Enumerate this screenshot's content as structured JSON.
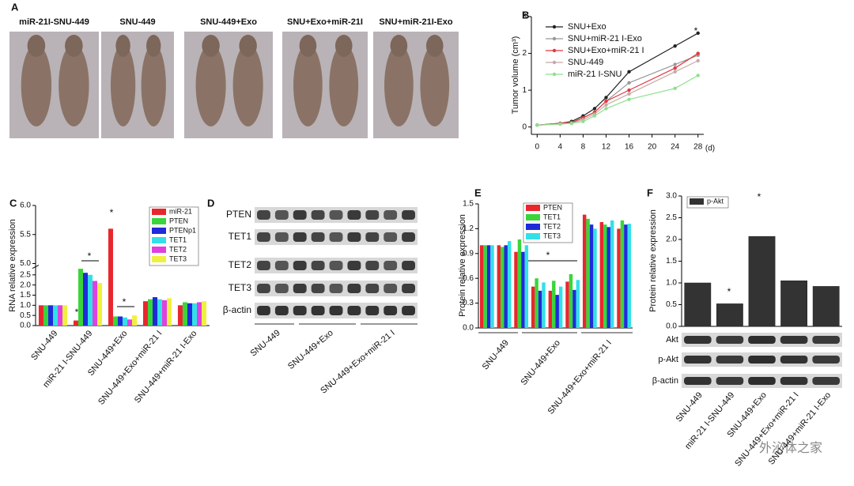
{
  "panel_a": {
    "letter": "A",
    "labels": [
      "miR-21I-SNU-449",
      "SNU-449",
      "SNU-449+Exo",
      "SNU+Exo+miR-21I",
      "SNU+miR-21I-Exo"
    ]
  },
  "panel_d": {
    "letter": "D",
    "rows": [
      "PTEN",
      "TET1",
      "TET2",
      "TET3",
      "β-actin"
    ],
    "groups": [
      "SNU-449",
      "SNU-449+Exo",
      "SNU-449+Exo+miR-21 I"
    ]
  },
  "panel_f_blot": {
    "rows": [
      "Akt",
      "p-Akt",
      "β-actin"
    ]
  },
  "watermark": "外泌体之家",
  "chart_data": [
    {
      "type": "line",
      "panel_label": "B",
      "ylabel": "Tumor volume (cm³)",
      "xlabel": "(d)",
      "annotations": [
        "*"
      ],
      "x": [
        0,
        4,
        6,
        8,
        10,
        12,
        16,
        24,
        28
      ],
      "xlim": [
        -1,
        29
      ],
      "xticks": [
        0,
        4,
        8,
        12,
        16,
        20,
        24,
        28
      ],
      "ylim": [
        -0.2,
        3
      ],
      "yticks": [
        0,
        1,
        2,
        3
      ],
      "legend": "upper left",
      "series": [
        {
          "name": "SNU+Exo",
          "color": "#222222",
          "values": [
            0.05,
            0.1,
            0.15,
            0.3,
            0.5,
            0.8,
            1.5,
            2.2,
            2.55
          ]
        },
        {
          "name": "SNU+miR-21 I-Exo",
          "color": "#999999",
          "values": [
            0.05,
            0.1,
            0.12,
            0.25,
            0.4,
            0.7,
            1.2,
            1.7,
            1.95
          ]
        },
        {
          "name": "SNU+Exo+miR-21 I",
          "color": "#e0393e",
          "values": [
            0.05,
            0.1,
            0.12,
            0.25,
            0.4,
            0.7,
            1.0,
            1.6,
            2.0
          ]
        },
        {
          "name": "SNU-449",
          "color": "#c8a8a8",
          "values": [
            0.05,
            0.08,
            0.1,
            0.2,
            0.35,
            0.6,
            0.9,
            1.5,
            1.8
          ]
        },
        {
          "name": "miR-21 I-SNU",
          "color": "#8ee08e",
          "values": [
            0.05,
            0.08,
            0.1,
            0.15,
            0.3,
            0.5,
            0.75,
            1.05,
            1.4
          ]
        }
      ]
    },
    {
      "type": "bar",
      "panel_label": "C",
      "ylabel": "RNA relative expression",
      "annotations": [
        "*",
        "*",
        "*",
        "*"
      ],
      "categories": [
        "SNU-449",
        "miR-21 I-SNU-449",
        "SNU-449+Exo",
        "SNU-449+Exo+miR-21 I",
        "SNU-449+miR-21 I-Exo"
      ],
      "ylim": [
        0,
        6.0
      ],
      "ybreak": [
        2.9,
        5.0
      ],
      "yticks": [
        {
          "value": 0,
          "label": "0.0"
        },
        {
          "value": 0.5,
          "label": "0.5"
        },
        {
          "value": 1,
          "label": "1.0"
        },
        {
          "value": 1.5,
          "label": "1.5"
        },
        {
          "value": 2,
          "label": "2.0"
        },
        {
          "value": 2.5,
          "label": "2.5"
        },
        {
          "value": 5,
          "label": "5.0"
        },
        {
          "value": 5.5,
          "label": "5.5"
        },
        {
          "value": 6,
          "label": "6.0"
        }
      ],
      "legend": "upper right",
      "series": [
        {
          "name": "miR-21",
          "color": "#e8272d",
          "values": [
            1.0,
            0.25,
            5.6,
            1.2,
            1.0
          ]
        },
        {
          "name": "PTEN",
          "color": "#3ad53a",
          "values": [
            1.0,
            2.8,
            0.45,
            1.3,
            1.15
          ]
        },
        {
          "name": "PTENp1",
          "color": "#1f2bd9",
          "values": [
            1.0,
            2.6,
            0.45,
            1.4,
            1.1
          ]
        },
        {
          "name": "TET1",
          "color": "#33e0e8",
          "values": [
            1.0,
            2.5,
            0.4,
            1.3,
            1.1
          ]
        },
        {
          "name": "TET2",
          "color": "#e040e0",
          "values": [
            1.0,
            2.2,
            0.3,
            1.25,
            1.15
          ]
        },
        {
          "name": "TET3",
          "color": "#f0f040",
          "values": [
            1.0,
            2.1,
            0.5,
            1.35,
            1.2
          ]
        }
      ]
    },
    {
      "type": "bar",
      "panel_label": "E",
      "ylabel": "Protein relative expression",
      "annotations": [
        "*"
      ],
      "categories": [
        null,
        "SNU-449",
        null,
        null,
        "SNU-449+Exo",
        null,
        null,
        "SNU-449+Exo+miR-21 I",
        null
      ],
      "ylim": [
        0,
        1.5
      ],
      "yticks": [
        {
          "value": 0,
          "label": "0.0"
        },
        {
          "value": 0.3,
          "label": "0.3"
        },
        {
          "value": 0.6,
          "label": "0.6"
        },
        {
          "value": 0.9,
          "label": "0.9"
        },
        {
          "value": 1.2,
          "label": "1.2"
        },
        {
          "value": 1.5,
          "label": "1.5"
        }
      ],
      "legend": "upper center",
      "series": [
        {
          "name": "PTEN",
          "color": "#e8272d",
          "values": [
            1.0,
            1.0,
            0.92,
            0.5,
            0.45,
            0.56,
            1.37,
            1.28,
            1.2
          ]
        },
        {
          "name": "TET1",
          "color": "#3ad53a",
          "values": [
            1.0,
            0.98,
            1.07,
            0.6,
            0.57,
            0.65,
            1.32,
            1.25,
            1.3
          ]
        },
        {
          "name": "TET2",
          "color": "#1f2bd9",
          "values": [
            1.0,
            1.0,
            0.92,
            0.45,
            0.4,
            0.46,
            1.25,
            1.22,
            1.25
          ]
        },
        {
          "name": "TET3",
          "color": "#33e0e8",
          "values": [
            1.0,
            1.05,
            1.0,
            0.55,
            0.5,
            0.58,
            1.2,
            1.3,
            1.26
          ]
        }
      ]
    },
    {
      "type": "bar",
      "panel_label": "F",
      "ylabel": "Protein relative expression",
      "annotations": [
        "*",
        "*"
      ],
      "categories": [
        "SNU-449",
        "miR-21 I-SNU-449",
        "SNU-449+Exo",
        "SNU-449+Exo+miR-21 I",
        "SNU-449+miR-21 I-Exo"
      ],
      "ylim": [
        0,
        3.0
      ],
      "yticks": [
        {
          "value": 0,
          "label": "0.0"
        },
        {
          "value": 0.5,
          "label": "0.5"
        },
        {
          "value": 1,
          "label": "1.0"
        },
        {
          "value": 1.5,
          "label": "1.5"
        },
        {
          "value": 2,
          "label": "2.0"
        },
        {
          "value": 2.5,
          "label": "2.5"
        },
        {
          "value": 3,
          "label": "3.0"
        }
      ],
      "legend": "upper left",
      "series": [
        {
          "name": "p-Akt",
          "color": "#333333",
          "values": [
            1.0,
            0.52,
            2.07,
            1.05,
            0.92
          ]
        }
      ]
    }
  ]
}
